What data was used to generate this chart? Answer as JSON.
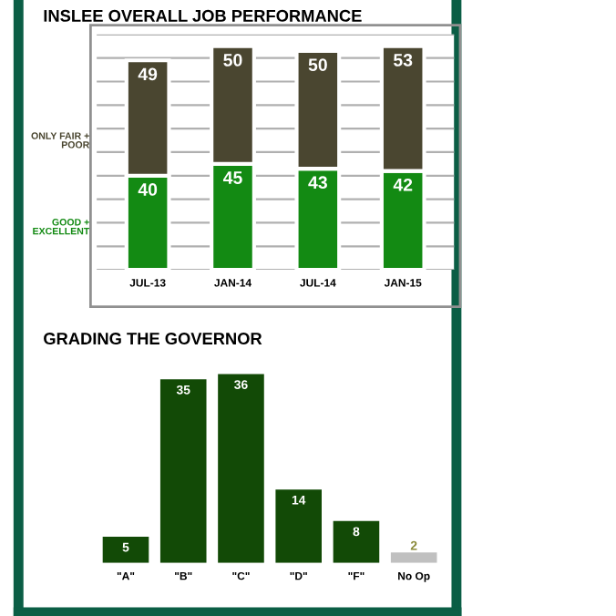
{
  "chart_data": [
    {
      "type": "bar",
      "title": "INSLEE OVERALL JOB PERFORMANCE",
      "categories": [
        "JUL-13",
        "JAN-14",
        "JUL-14",
        "JAN-15"
      ],
      "series": [
        {
          "name": "GOOD + EXCELLENT",
          "color": "#138a13",
          "values": [
            40,
            45,
            43,
            42
          ]
        },
        {
          "name": "ONLY FAIR + POOR",
          "color": "#4a4630",
          "values": [
            49,
            50,
            50,
            53
          ]
        }
      ],
      "stacked": true,
      "ylim": [
        0,
        100
      ],
      "yticks": [
        {
          "value": 0,
          "label": null
        },
        {
          "value": 10,
          "label": null
        },
        {
          "value": 20,
          "label": null
        },
        {
          "value": 30,
          "label": null
        },
        {
          "value": 40,
          "label": null
        },
        {
          "value": 50,
          "label": null
        },
        {
          "value": 60,
          "label": null
        },
        {
          "value": 70,
          "label": null
        },
        {
          "value": 80,
          "label": null
        },
        {
          "value": 90,
          "label": null
        },
        {
          "value": 100,
          "label": null
        }
      ],
      "grid": "y",
      "tick_labels": "x",
      "data_labels": true,
      "legend": "left"
    },
    {
      "type": "bar",
      "title": "GRADING THE GOVERNOR",
      "categories": [
        "\"A\"",
        "\"B\"",
        "\"C\"",
        "\"D\"",
        "\"F\"",
        "No Op"
      ],
      "values": [
        5,
        35,
        36,
        14,
        8,
        2
      ],
      "colors": [
        "#124a06",
        "#124a06",
        "#124a06",
        "#124a06",
        "#124a06",
        "#c0c0c0"
      ],
      "tick_labels": "x",
      "data_labels": true
    }
  ]
}
